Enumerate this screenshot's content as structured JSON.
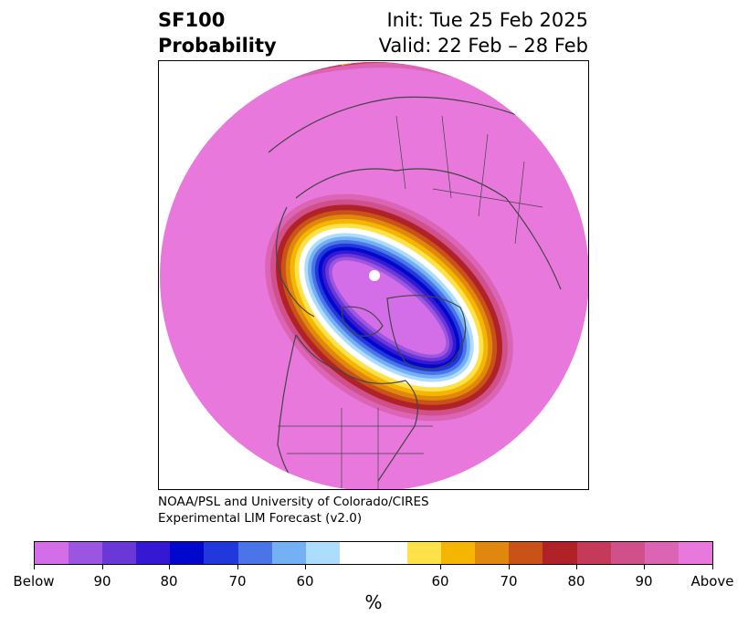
{
  "header": {
    "title_line1": "SF100",
    "title_line2": "Probability",
    "init_text": "Init: Tue 25 Feb 2025",
    "valid_text": "Valid: 22 Feb – 28 Feb"
  },
  "credit": {
    "line1": "NOAA/PSL and University of Colorado/CIRES",
    "line2": "Experimental LIM Forecast (v2.0)"
  },
  "colorbar": {
    "label": "%",
    "colors": [
      "#d46ee8",
      "#9b55e0",
      "#6b38d8",
      "#3418d4",
      "#0008cc",
      "#2038dc",
      "#4a74e8",
      "#74b0f4",
      "#aedcfc",
      "#ffffff",
      "#ffe24a",
      "#f4b600",
      "#e0880e",
      "#c85218",
      "#b02228",
      "#c43a58",
      "#d0508c",
      "#dc64b4",
      "#e878dc"
    ],
    "ticks": [
      "Below",
      "90",
      "80",
      "70",
      "60",
      "60",
      "70",
      "80",
      "90",
      "Above"
    ]
  },
  "map": {
    "background_color": "#e878dc",
    "below_color": "#d46ee8",
    "projection": "north-polar-stereographic"
  }
}
